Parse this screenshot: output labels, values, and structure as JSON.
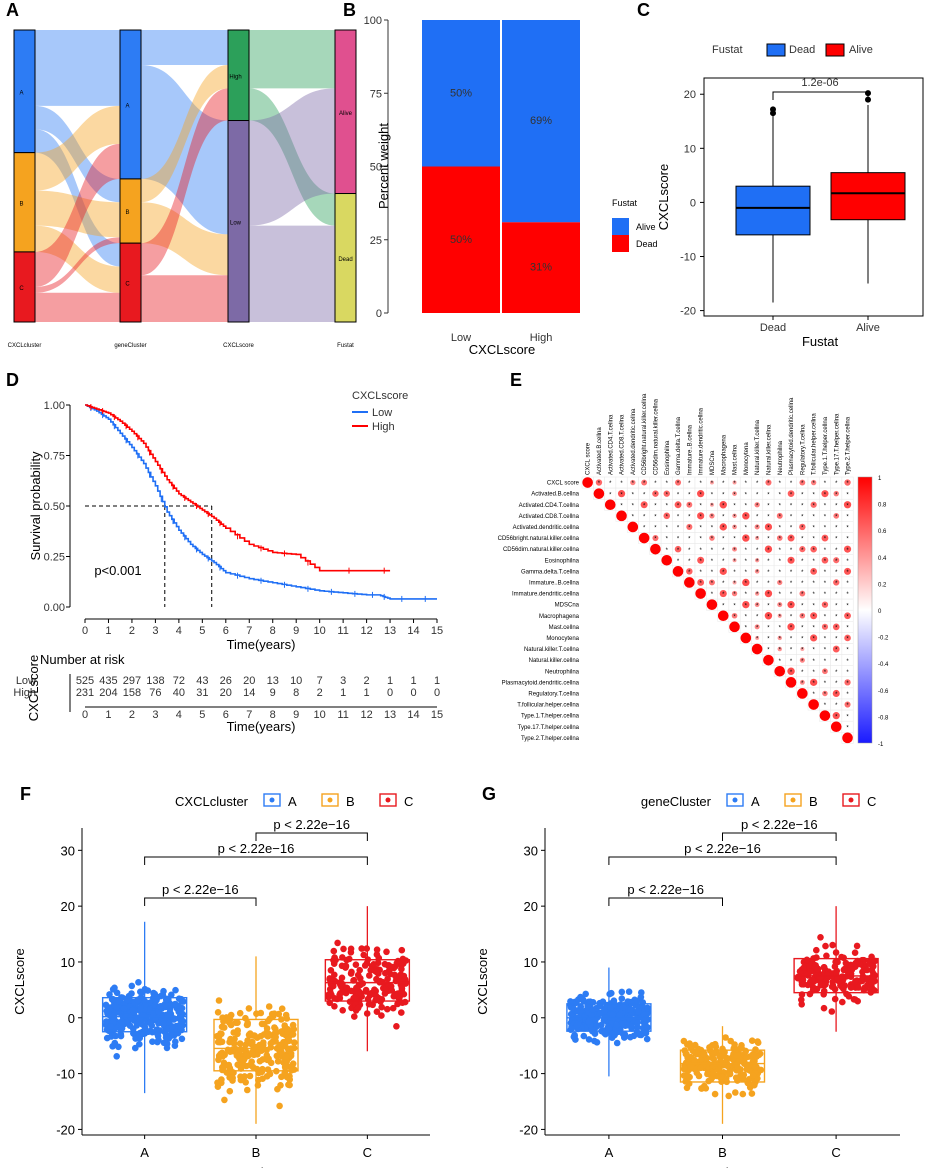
{
  "panels": {
    "A": "A",
    "B": "B",
    "C": "C",
    "D": "D",
    "E": "E",
    "F": "F",
    "G": "G"
  },
  "colors": {
    "alive_blue": "#1f6ff5",
    "dead_red": "#ff0000",
    "clA": "#2d7cf4",
    "clB": "#f5a31f",
    "clC": "#e8191f",
    "high": "#2ca05a",
    "low": "#7d6aa6",
    "alive": "#e0508f",
    "dead": "#d9d861"
  },
  "chart_data": [
    {
      "panel": "A",
      "type": "sankey",
      "axes": [
        "CXCLcluster",
        "geneCluster",
        "CXCLscore",
        "Fustat"
      ],
      "nodes": {
        "CXCLcluster": [
          "A",
          "B",
          "C"
        ],
        "geneCluster": [
          "A",
          "B",
          "C"
        ],
        "CXCLscore": [
          "High",
          "Low"
        ],
        "Fustat": [
          "Alive",
          "Dead"
        ]
      },
      "node_shares": {
        "CXCLcluster": [
          0.42,
          0.34,
          0.24
        ],
        "geneCluster": [
          0.51,
          0.22,
          0.27
        ],
        "CXCLscore": [
          0.31,
          0.69
        ],
        "Fustat": [
          0.56,
          0.44
        ]
      }
    },
    {
      "panel": "B",
      "type": "bar",
      "stacked": true,
      "categories": [
        "Low",
        "High"
      ],
      "series": [
        {
          "name": "Dead",
          "values": [
            50,
            31
          ]
        },
        {
          "name": "Alive",
          "values": [
            50,
            69
          ]
        }
      ],
      "labels": {
        "Low": [
          "50%",
          "50%"
        ],
        "High": [
          "31%",
          "69%"
        ]
      },
      "ylabel": "Percent weight",
      "xlabel": "CXCLscore",
      "ylim": [
        0,
        100
      ],
      "yticks": [
        0,
        25,
        50,
        75,
        100
      ],
      "legend_title": "Fustat",
      "legend": [
        "Alive",
        "Dead"
      ]
    },
    {
      "panel": "C",
      "type": "box",
      "categories": [
        "Dead",
        "Alive"
      ],
      "stats": [
        {
          "name": "Dead",
          "min": -18.5,
          "q1": -6,
          "median": -1,
          "q3": 3,
          "max": 16,
          "outliers": [
            16.5,
            17.2
          ]
        },
        {
          "name": "Alive",
          "min": -15,
          "q1": -3.2,
          "median": 1.7,
          "q3": 5.5,
          "max": 18,
          "outliers": [
            19,
            20.2
          ]
        }
      ],
      "pvalue": "1.2e-06",
      "ylabel": "CXCLscore",
      "xlabel": "Fustat",
      "ylim": [
        -21,
        23
      ],
      "yticks": [
        -20,
        -10,
        0,
        10,
        20
      ],
      "legend_title": "Fustat",
      "legend": [
        "Dead",
        "Alive"
      ]
    },
    {
      "panel": "D",
      "type": "line",
      "title": "",
      "xlabel": "Time(years)",
      "ylabel": "Survival probability",
      "xlim": [
        0,
        15
      ],
      "ylim": [
        0,
        1
      ],
      "xticks": [
        0,
        1,
        2,
        3,
        4,
        5,
        6,
        7,
        8,
        9,
        10,
        11,
        12,
        13,
        14,
        15
      ],
      "yticks": [
        "0.00",
        "0.25",
        "0.50",
        "0.75",
        "1.00"
      ],
      "legend_title": "CXCLscore",
      "series": [
        {
          "name": "Low",
          "x": [
            0,
            0.5,
            1,
            1.5,
            2,
            2.5,
            3,
            3.5,
            4,
            4.5,
            5,
            5.5,
            6,
            7,
            8,
            9,
            10,
            11,
            12,
            12.5,
            13,
            14,
            15
          ],
          "y": [
            1,
            0.97,
            0.93,
            0.86,
            0.79,
            0.71,
            0.6,
            0.47,
            0.38,
            0.31,
            0.26,
            0.22,
            0.17,
            0.14,
            0.12,
            0.1,
            0.08,
            0.07,
            0.06,
            0.06,
            0.04,
            0.04,
            0.04
          ]
        },
        {
          "name": "High",
          "x": [
            0,
            0.5,
            1,
            1.5,
            2,
            2.5,
            3,
            3.5,
            4,
            4.5,
            5,
            5.5,
            6,
            7,
            8,
            9,
            10,
            12.5,
            13
          ],
          "y": [
            1,
            0.98,
            0.96,
            0.92,
            0.87,
            0.81,
            0.72,
            0.63,
            0.56,
            0.52,
            0.48,
            0.44,
            0.39,
            0.31,
            0.27,
            0.26,
            0.18,
            0.18,
            0.18
          ]
        }
      ],
      "annotation": "p<0.001",
      "risk_table": {
        "title": "Number at risk",
        "ylabel": "CXCLscore",
        "xlabel": "Time(years)",
        "rows": [
          {
            "name": "Low",
            "values": [
              525,
              435,
              297,
              138,
              72,
              43,
              26,
              20,
              13,
              10,
              7,
              3,
              2,
              1,
              1,
              1
            ]
          },
          {
            "name": "High",
            "values": [
              231,
              204,
              158,
              76,
              40,
              31,
              20,
              14,
              9,
              8,
              2,
              1,
              1,
              0,
              0,
              0
            ]
          }
        ]
      }
    },
    {
      "panel": "E",
      "type": "heatmap",
      "variables": [
        "CXCL score",
        "Activated.B.cellna",
        "Activated.CD4.T.cellna",
        "Activated.CD8.T.cellna",
        "Activated.dendritic.cellna",
        "CD56bright.natural.killer.cellna",
        "CD56dim.natural.killer.cellna",
        "Eosinophilna",
        "Gamma.delta.T.cellna",
        "Immature..B.cellna",
        "Immature.dendritic.cellna",
        "MDSCna",
        "Macrophagena",
        "Mast.cellna",
        "Monocytena",
        "Natural.killer.T.cellna",
        "Natural.killer.cellna",
        "Neutrophilna",
        "Plasmacytoid.dendritic.cellna",
        "Regulatory.T.cellna",
        "T.follicular.helper.cellna",
        "Type.1.T.helper.cellna",
        "Type.17.T.helper.cellna",
        "Type.2.T.helper.cellna"
      ],
      "colorbar_ticks": [
        "1",
        "0.8",
        "0.6",
        "0.4",
        "0.2",
        "0",
        "-0.2",
        "-0.4",
        "-0.6",
        "-0.8",
        "-1"
      ],
      "legend_range": [
        -1,
        1
      ]
    },
    {
      "panel": "F",
      "type": "box",
      "legend_title": "CXCLcluster",
      "categories": [
        "A",
        "B",
        "C"
      ],
      "stats": [
        {
          "name": "A",
          "min": -13.5,
          "q1": -2.5,
          "median": 0.2,
          "q3": 3.6,
          "max": 17.2
        },
        {
          "name": "B",
          "min": -19,
          "q1": -9.5,
          "median": -5.5,
          "q3": -0.3,
          "max": 11
        },
        {
          "name": "C",
          "min": -6,
          "q1": 3,
          "median": 6.3,
          "q3": 10.4,
          "max": 20
        }
      ],
      "comparisons": [
        {
          "pair": [
            "A",
            "B"
          ],
          "label": "p < 2.22e−16"
        },
        {
          "pair": [
            "A",
            "C"
          ],
          "label": "p < 2.22e−16"
        },
        {
          "pair": [
            "B",
            "C"
          ],
          "label": "p < 2.22e−16"
        }
      ],
      "ylabel": "CXCLscore",
      "xlabel": "CXCLcluster",
      "ylim": [
        -21,
        34
      ],
      "yticks": [
        -20,
        -10,
        0,
        10,
        20,
        30
      ]
    },
    {
      "panel": "G",
      "type": "box",
      "legend_title": "geneCluster",
      "categories": [
        "A",
        "B",
        "C"
      ],
      "stats": [
        {
          "name": "A",
          "min": -10.5,
          "q1": -2.4,
          "median": 0,
          "q3": 2.5,
          "max": 9
        },
        {
          "name": "B",
          "min": -19,
          "q1": -11.5,
          "median": -8.2,
          "q3": -5.8,
          "max": -1.5
        },
        {
          "name": "C",
          "min": -2.5,
          "q1": 4.5,
          "median": 7.5,
          "q3": 10.6,
          "max": 20
        }
      ],
      "comparisons": [
        {
          "pair": [
            "A",
            "B"
          ],
          "label": "p < 2.22e−16"
        },
        {
          "pair": [
            "A",
            "C"
          ],
          "label": "p < 2.22e−16"
        },
        {
          "pair": [
            "B",
            "C"
          ],
          "label": "p < 2.22e−16"
        }
      ],
      "ylabel": "CXCLscore",
      "xlabel": "geneCluster",
      "ylim": [
        -21,
        34
      ],
      "yticks": [
        -20,
        -10,
        0,
        10,
        20,
        30
      ]
    }
  ]
}
